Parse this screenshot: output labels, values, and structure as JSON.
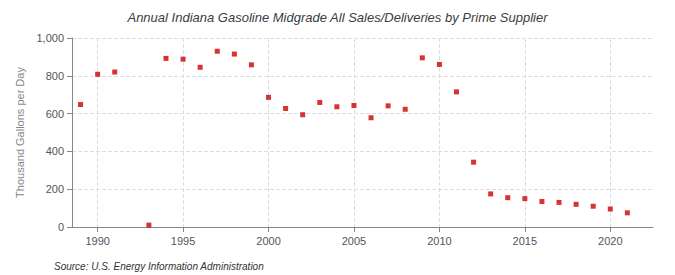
{
  "chart_data": {
    "type": "scatter",
    "title": "Annual Indiana Gasoline Midgrade All Sales/Deliveries by Prime Supplier",
    "ylabel": "Thousand Gallons per Day",
    "annotation": "Source: U.S. Energy Information Administration",
    "x": [
      1989,
      1990,
      1991,
      1993,
      1994,
      1995,
      1996,
      1997,
      1998,
      1999,
      2000,
      2001,
      2002,
      2003,
      2004,
      2005,
      2006,
      2007,
      2008,
      2009,
      2010,
      2011,
      2012,
      2013,
      2014,
      2015,
      2016,
      2017,
      2018,
      2019,
      2020,
      2021
    ],
    "values": [
      648,
      808,
      820,
      10,
      892,
      888,
      845,
      930,
      915,
      858,
      686,
      627,
      594,
      659,
      636,
      643,
      578,
      641,
      623,
      895,
      860,
      715,
      343,
      175,
      155,
      150,
      135,
      130,
      120,
      110,
      95,
      75
    ],
    "color": "#cc0000",
    "marker": "square",
    "xlim": [
      1988.5,
      2022.5
    ],
    "xticks": [
      1990,
      1995,
      2000,
      2005,
      2010,
      2015,
      2020
    ],
    "ylim": [
      0,
      1000
    ],
    "yticks": [
      0,
      200,
      400,
      600,
      800,
      {
        "value": 1000,
        "label": "1,000"
      }
    ],
    "grid": true
  }
}
